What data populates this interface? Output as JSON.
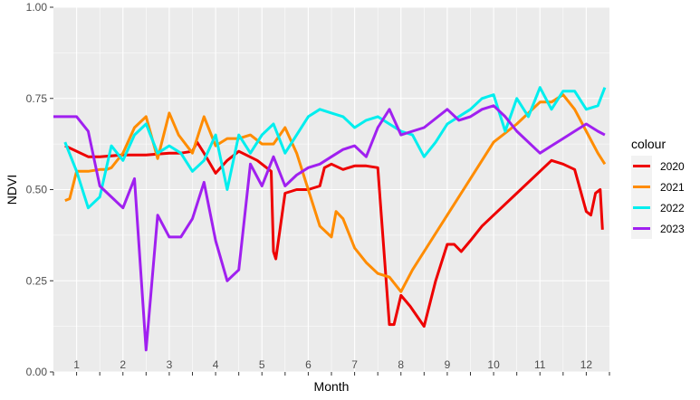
{
  "chart_data": {
    "type": "line",
    "xlabel": "Month",
    "ylabel": "NDVI",
    "xlim": [
      0.5,
      12.5
    ],
    "ylim": [
      0,
      1
    ],
    "x_ticks": [
      1,
      2,
      3,
      4,
      5,
      6,
      7,
      8,
      9,
      10,
      11,
      12
    ],
    "x_tick_labels": [
      "1",
      "2",
      "3",
      "4",
      "5",
      "6",
      "7",
      "8",
      "9",
      "10",
      "11",
      "12"
    ],
    "y_ticks": [
      0,
      0.25,
      0.5,
      0.75,
      1
    ],
    "y_tick_labels": [
      "0.00",
      "0.25",
      "0.50",
      "0.75",
      "1.00"
    ],
    "grid": true,
    "legend": {
      "title": "colour",
      "placement": "right"
    },
    "series": [
      {
        "name": "2020",
        "color": "#ee0000",
        "x": [
          0.75,
          1.25,
          1.5,
          2.0,
          2.5,
          3.0,
          3.25,
          3.5,
          3.6,
          3.75,
          4.0,
          4.25,
          4.5,
          4.9,
          5.2,
          5.25,
          5.3,
          5.5,
          5.75,
          6.0,
          6.25,
          6.35,
          6.5,
          6.75,
          7.0,
          7.25,
          7.5,
          7.75,
          7.85,
          8.0,
          8.2,
          8.5,
          8.75,
          9.0,
          9.15,
          9.3,
          9.5,
          9.75,
          10.0,
          10.5,
          11.0,
          11.25,
          11.5,
          11.75,
          12.0,
          12.1,
          12.2,
          12.3,
          12.35
        ],
        "y": [
          0.62,
          0.59,
          0.59,
          0.595,
          0.595,
          0.6,
          0.6,
          0.605,
          0.63,
          0.6,
          0.545,
          0.58,
          0.605,
          0.58,
          0.55,
          0.33,
          0.31,
          0.49,
          0.5,
          0.5,
          0.51,
          0.56,
          0.57,
          0.555,
          0.565,
          0.565,
          0.56,
          0.13,
          0.13,
          0.21,
          0.18,
          0.125,
          0.25,
          0.35,
          0.35,
          0.33,
          0.36,
          0.4,
          0.43,
          0.49,
          0.55,
          0.58,
          0.57,
          0.555,
          0.44,
          0.43,
          0.49,
          0.5,
          0.39
        ]
      },
      {
        "name": "2021",
        "color": "#ff8c00",
        "x": [
          0.75,
          0.85,
          1.0,
          1.25,
          1.5,
          1.65,
          1.75,
          2.0,
          2.25,
          2.5,
          2.75,
          3.0,
          3.2,
          3.5,
          3.75,
          4.0,
          4.25,
          4.5,
          4.75,
          5.0,
          5.25,
          5.5,
          5.75,
          6.0,
          6.25,
          6.5,
          6.6,
          6.75,
          7.0,
          7.25,
          7.5,
          7.75,
          8.0,
          8.25,
          8.5,
          9.0,
          9.5,
          10.0,
          10.5,
          11.0,
          11.25,
          11.5,
          11.75,
          12.0,
          12.25,
          12.4
        ],
        "y": [
          0.47,
          0.475,
          0.55,
          0.55,
          0.555,
          0.555,
          0.56,
          0.6,
          0.67,
          0.7,
          0.585,
          0.71,
          0.65,
          0.6,
          0.7,
          0.62,
          0.64,
          0.64,
          0.65,
          0.625,
          0.625,
          0.67,
          0.6,
          0.5,
          0.4,
          0.37,
          0.44,
          0.42,
          0.34,
          0.3,
          0.27,
          0.26,
          0.22,
          0.28,
          0.33,
          0.43,
          0.53,
          0.63,
          0.68,
          0.74,
          0.74,
          0.76,
          0.72,
          0.66,
          0.6,
          0.57
        ]
      },
      {
        "name": "2022",
        "color": "#00eeee",
        "x": [
          0.75,
          1.0,
          1.25,
          1.5,
          1.75,
          2.0,
          2.25,
          2.5,
          2.75,
          3.0,
          3.25,
          3.5,
          3.75,
          4.0,
          4.25,
          4.5,
          4.75,
          5.0,
          5.25,
          5.5,
          5.75,
          6.0,
          6.25,
          6.5,
          6.75,
          7.0,
          7.25,
          7.5,
          7.75,
          8.0,
          8.25,
          8.5,
          8.75,
          9.0,
          9.25,
          9.5,
          9.75,
          10.0,
          10.25,
          10.5,
          10.75,
          11.0,
          11.25,
          11.5,
          11.75,
          12.0,
          12.25,
          12.4
        ],
        "y": [
          0.63,
          0.55,
          0.45,
          0.48,
          0.62,
          0.58,
          0.65,
          0.68,
          0.6,
          0.62,
          0.6,
          0.55,
          0.58,
          0.65,
          0.5,
          0.65,
          0.6,
          0.65,
          0.68,
          0.6,
          0.65,
          0.7,
          0.72,
          0.71,
          0.7,
          0.67,
          0.69,
          0.7,
          0.68,
          0.66,
          0.65,
          0.59,
          0.63,
          0.68,
          0.7,
          0.72,
          0.75,
          0.76,
          0.66,
          0.75,
          0.7,
          0.78,
          0.72,
          0.77,
          0.77,
          0.72,
          0.73,
          0.78
        ]
      },
      {
        "name": "2023",
        "color": "#a020f0",
        "x": [
          0.5,
          0.75,
          1.0,
          1.25,
          1.5,
          1.75,
          2.0,
          2.25,
          2.5,
          2.75,
          3.0,
          3.25,
          3.5,
          3.75,
          4.0,
          4.25,
          4.5,
          4.75,
          5.0,
          5.25,
          5.5,
          5.75,
          6.0,
          6.25,
          6.5,
          6.75,
          7.0,
          7.25,
          7.5,
          7.75,
          8.0,
          8.25,
          8.5,
          9.0,
          9.25,
          9.5,
          9.75,
          10.0,
          10.25,
          10.5,
          11.0,
          11.25,
          11.5,
          11.75,
          12.0,
          12.25,
          12.4
        ],
        "y": [
          0.7,
          0.7,
          0.7,
          0.66,
          0.51,
          0.48,
          0.45,
          0.53,
          0.06,
          0.43,
          0.37,
          0.37,
          0.42,
          0.52,
          0.36,
          0.25,
          0.28,
          0.57,
          0.51,
          0.59,
          0.51,
          0.54,
          0.56,
          0.57,
          0.59,
          0.61,
          0.62,
          0.59,
          0.67,
          0.72,
          0.65,
          0.66,
          0.67,
          0.72,
          0.69,
          0.7,
          0.72,
          0.73,
          0.7,
          0.66,
          0.6,
          0.62,
          0.64,
          0.66,
          0.68,
          0.66,
          0.65
        ]
      }
    ]
  }
}
